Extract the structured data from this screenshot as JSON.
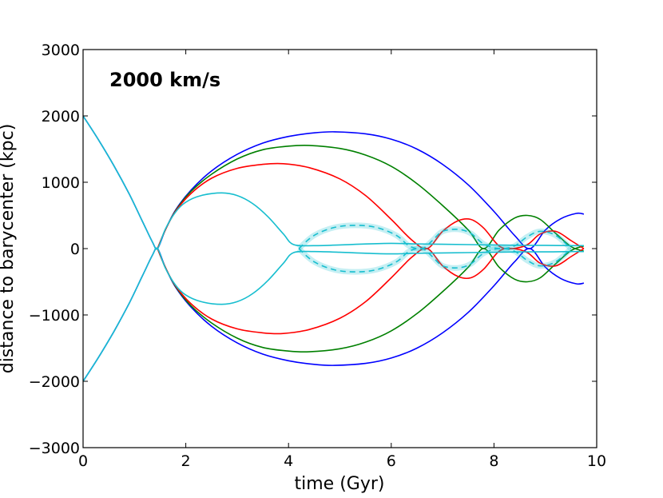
{
  "chart_data": {
    "type": "line",
    "title": "",
    "annotation": "2000 km/s",
    "xlabel": "time (Gyr)",
    "ylabel": "distance to barycenter (kpc)",
    "xlim": [
      0,
      10
    ],
    "ylim": [
      -3000,
      3000
    ],
    "x_ticks": [
      0,
      2,
      4,
      6,
      8,
      10
    ],
    "x_tick_labels": [
      "0",
      "2",
      "4",
      "6",
      "8",
      "10"
    ],
    "y_ticks": [
      3000,
      2000,
      1000,
      0,
      -1000,
      -2000,
      -3000
    ],
    "y_tick_labels": [
      "3000",
      "2000",
      "1000",
      "0",
      "−1000",
      "−2000",
      "−3000"
    ],
    "grid": false,
    "series": [
      {
        "name": "blue",
        "color": "#0000ff",
        "style": "solid",
        "x": [
          0,
          0.3,
          0.6,
          0.9,
          1.15,
          1.35,
          1.45,
          1.6,
          1.8,
          2.1,
          2.5,
          3,
          3.5,
          4,
          4.5,
          4.9,
          5.5,
          6,
          6.5,
          7,
          7.5,
          8,
          8.4,
          8.7,
          9,
          9.3,
          9.6,
          9.75
        ],
        "y": [
          2000,
          1640,
          1250,
          820,
          420,
          100,
          0,
          280,
          580,
          880,
          1170,
          1420,
          1590,
          1690,
          1745,
          1760,
          1730,
          1650,
          1500,
          1270,
          960,
          560,
          200,
          0,
          280,
          450,
          530,
          520
        ]
      },
      {
        "name": "blue mirror",
        "color": "#0000ff",
        "style": "solid",
        "x": [
          0,
          0.3,
          0.6,
          0.9,
          1.15,
          1.35,
          1.45,
          1.6,
          1.8,
          2.1,
          2.5,
          3,
          3.5,
          4,
          4.5,
          4.9,
          5.5,
          6,
          6.5,
          7,
          7.5,
          8,
          8.4,
          8.7,
          9,
          9.3,
          9.6,
          9.75
        ],
        "y": [
          -2000,
          -1640,
          -1250,
          -820,
          -420,
          -100,
          0,
          -280,
          -580,
          -880,
          -1170,
          -1420,
          -1590,
          -1690,
          -1745,
          -1760,
          -1730,
          -1650,
          -1500,
          -1270,
          -960,
          -560,
          -200,
          0,
          -280,
          -450,
          -530,
          -520
        ]
      },
      {
        "name": "green",
        "color": "#008000",
        "style": "solid",
        "x": [
          1.45,
          1.6,
          1.8,
          2.1,
          2.5,
          3,
          3.5,
          4,
          4.4,
          5,
          5.5,
          6,
          6.5,
          7,
          7.5,
          7.8,
          8.1,
          8.4,
          8.65,
          8.9,
          9.2,
          9.5,
          9.75
        ],
        "y": [
          0,
          280,
          570,
          860,
          1120,
          1350,
          1490,
          1545,
          1555,
          1510,
          1410,
          1240,
          980,
          650,
          280,
          0,
          280,
          460,
          500,
          440,
          230,
          30,
          -40
        ],
        "mirror": true
      },
      {
        "name": "red",
        "color": "#ff0000",
        "style": "solid",
        "x": [
          1.45,
          1.6,
          1.8,
          2.1,
          2.5,
          3,
          3.5,
          3.9,
          4.4,
          5,
          5.5,
          6,
          6.4,
          6.7,
          7,
          7.3,
          7.55,
          7.8,
          8.1,
          8.35,
          8.65,
          8.9,
          9.2,
          9.5,
          9.75
        ],
        "y": [
          0,
          280,
          560,
          830,
          1060,
          1210,
          1270,
          1280,
          1220,
          1050,
          800,
          440,
          130,
          0,
          260,
          420,
          440,
          310,
          40,
          0,
          60,
          220,
          260,
          120,
          0
        ],
        "mirror": true
      },
      {
        "name": "cyan",
        "color": "#17becf",
        "style": "solid",
        "x": [
          0,
          0.3,
          0.6,
          0.9,
          1.15,
          1.35,
          1.45,
          1.6,
          1.8,
          2,
          2.3,
          2.7,
          3,
          3.3,
          3.6,
          3.9,
          4.1,
          4.5,
          5,
          5.5,
          6,
          6.5,
          7,
          7.5,
          8,
          8.5,
          9,
          9.5,
          9.75
        ],
        "y": [
          2000,
          1640,
          1250,
          820,
          420,
          100,
          0,
          290,
          550,
          700,
          800,
          840,
          800,
          680,
          480,
          220,
          60,
          45,
          55,
          70,
          80,
          70,
          65,
          60,
          55,
          50,
          50,
          45,
          45
        ],
        "mirror": true
      },
      {
        "name": "cyan dashed",
        "color": "#17becf",
        "style": "dashed",
        "x": [
          4.2,
          4.5,
          4.9,
          5.3,
          5.7,
          6.1,
          6.35,
          6.6,
          6.8,
          7,
          7.3,
          7.55,
          7.8,
          8.1,
          8.4,
          8.65,
          8.9,
          9.2,
          9.5
        ],
        "y": [
          0,
          200,
          320,
          350,
          320,
          200,
          40,
          0,
          120,
          260,
          290,
          230,
          70,
          0,
          40,
          180,
          260,
          200,
          0
        ],
        "mirror": true
      }
    ]
  }
}
